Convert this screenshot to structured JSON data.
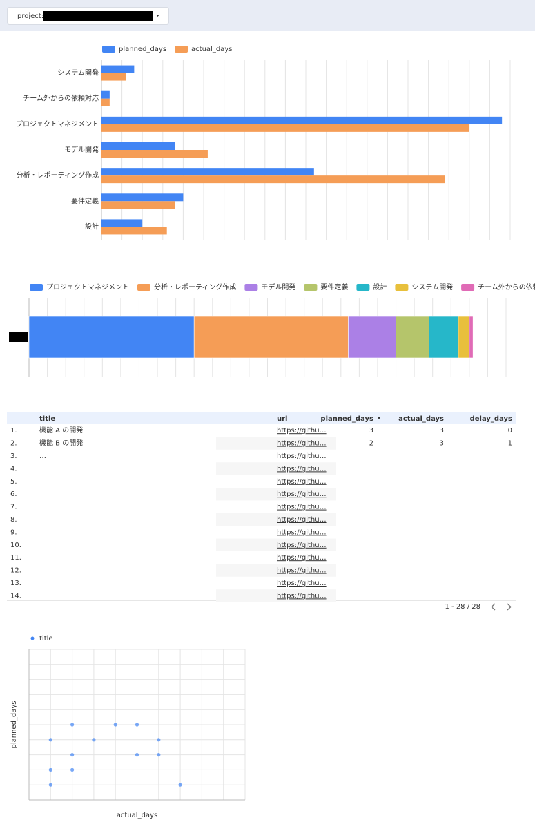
{
  "filter": {
    "label": "project:"
  },
  "chart_data": [
    {
      "type": "bar",
      "orientation": "horizontal",
      "categories": [
        "システム開発",
        "チーム外からの依頼対応",
        "プロジェクトマネジメント",
        "モデル開発",
        "分析・レポーティング作成",
        "要件定義",
        "設計"
      ],
      "series": [
        {
          "name": "planned_days",
          "color": "#4285f4",
          "values": [
            1.6,
            0.4,
            19.6,
            3.6,
            10.4,
            4,
            2
          ]
        },
        {
          "name": "actual_days",
          "color": "#f59d56",
          "values": [
            1.2,
            0.4,
            18,
            5.2,
            16.8,
            3.6,
            3.2
          ]
        }
      ],
      "xlim": [
        0,
        20
      ],
      "xticks": [
        0,
        1,
        2,
        3,
        4,
        5,
        6,
        7,
        8,
        9,
        10,
        11,
        12,
        13,
        14,
        15,
        16,
        17,
        18,
        19,
        20
      ],
      "grid": true,
      "legend": "top"
    },
    {
      "type": "bar",
      "orientation": "horizontal",
      "stacked": true,
      "categories": [
        null
      ],
      "series": [
        {
          "name": "プロジェクトマネジメント",
          "color": "#4285f4",
          "values": [
            18
          ]
        },
        {
          "name": "分析・レポーティング作成",
          "color": "#f59d56",
          "values": [
            16.8
          ]
        },
        {
          "name": "モデル開発",
          "color": "#ab80e6",
          "values": [
            5.2
          ]
        },
        {
          "name": "要件定義",
          "color": "#b5c56b",
          "values": [
            3.6
          ]
        },
        {
          "name": "設計",
          "color": "#26b7c9",
          "values": [
            3.2
          ]
        },
        {
          "name": "システム開発",
          "color": "#e8c03c",
          "values": [
            1.2
          ]
        },
        {
          "name": "チーム外からの依頼対応",
          "color": "#e06bb6",
          "values": [
            0.4
          ]
        }
      ],
      "xlim": [
        0,
        52
      ],
      "xticks": [
        0,
        2,
        4,
        6,
        8,
        10,
        12,
        14,
        16,
        18,
        20,
        22,
        24,
        26,
        28,
        30,
        32,
        34,
        36,
        38,
        40,
        42,
        44,
        46,
        48,
        50,
        52
      ],
      "grid": true,
      "legend": "top"
    },
    {
      "type": "scatter",
      "x_label": "actual_days",
      "y_label": "planned_days",
      "series": [
        {
          "name": "title",
          "color": "#4285f4",
          "x": [
            1,
            2,
            1,
            2,
            5,
            6,
            1,
            3,
            6,
            2,
            4,
            5,
            7
          ],
          "y": [
            1,
            2,
            2,
            3,
            3,
            3,
            4,
            4,
            4,
            5,
            5,
            5,
            1
          ]
        }
      ],
      "xlim": [
        0,
        10
      ],
      "ylim": [
        0,
        10
      ],
      "xticks": [
        0,
        1,
        2,
        3,
        4,
        5,
        6,
        7,
        8,
        9,
        10
      ],
      "yticks": [
        0,
        1,
        2,
        3,
        4,
        5,
        6,
        7,
        8,
        9,
        10
      ],
      "grid": true,
      "legend": "top"
    }
  ],
  "table": {
    "columns": [
      "title",
      "url",
      "planned_days",
      "actual_days",
      "delay_days"
    ],
    "rows": [
      {
        "index": "1.",
        "title": "機能 A の開発",
        "url": "https://githu…",
        "planned_days": 3,
        "actual_days": 3,
        "delay_days": 0
      },
      {
        "index": "2.",
        "title": "機能 B の開発",
        "url": "https://githu…",
        "planned_days": 2,
        "actual_days": 3,
        "delay_days": 1
      },
      {
        "index": "3.",
        "title": "…",
        "url": "https://githu…"
      },
      {
        "index": "4.",
        "url": "https://githu…"
      },
      {
        "index": "5.",
        "url": "https://githu…"
      },
      {
        "index": "6.",
        "url": "https://githu…"
      },
      {
        "index": "7.",
        "url": "https://githu…"
      },
      {
        "index": "8.",
        "url": "https://githu…"
      },
      {
        "index": "9.",
        "url": "https://githu…"
      },
      {
        "index": "10.",
        "url": "https://githu…"
      },
      {
        "index": "11.",
        "url": "https://githu…"
      },
      {
        "index": "12.",
        "url": "https://githu…"
      },
      {
        "index": "13.",
        "url": "https://githu…"
      },
      {
        "index": "14.",
        "url": "https://githu…"
      }
    ],
    "pagination": "1 - 28 / 28"
  }
}
